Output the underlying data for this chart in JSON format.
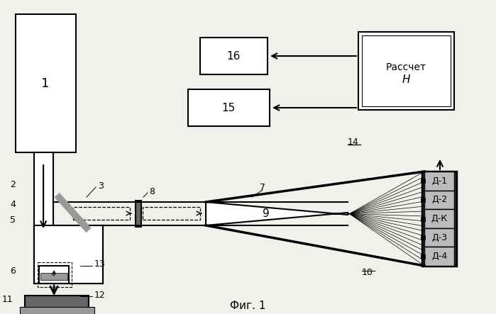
{
  "bg_color": "#f0f0ec",
  "fig_width": 6.99,
  "fig_height": 4.43,
  "dpi": 100,
  "title": "Фиг. 1",
  "detector_labels": [
    "Д-1",
    "Д-2",
    "Д-К",
    "Д-3",
    "Д-4"
  ],
  "box16_label": "16",
  "box15_label": "15",
  "box_rasch_line1": "Рассчет",
  "box_rasch_line2": "H",
  "label1": "1",
  "label2": "2",
  "label3": "3",
  "label4": "4",
  "label5": "5",
  "label6": "6",
  "label7": "7",
  "label8": "8",
  "label9": "9",
  "label10": "10",
  "label11": "11",
  "label12": "12",
  "label13": "13",
  "label14": "14"
}
